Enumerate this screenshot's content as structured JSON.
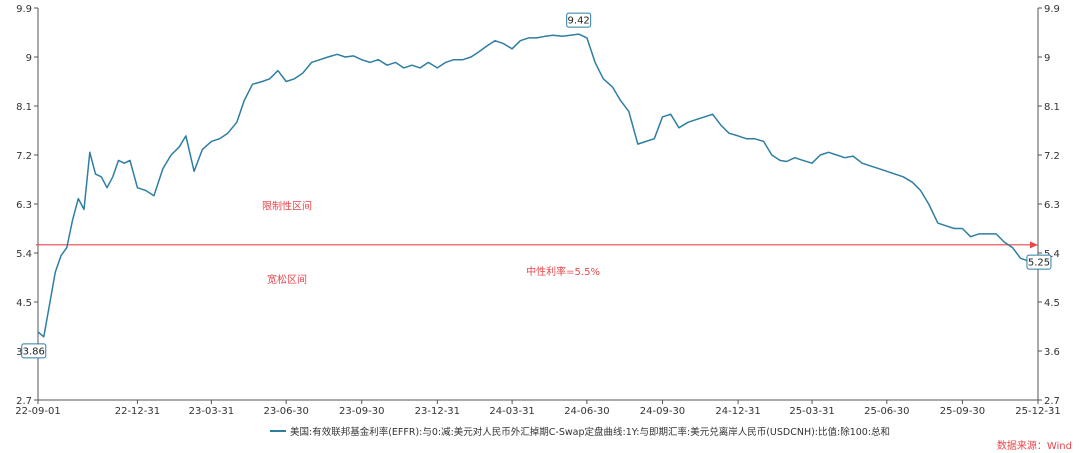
{
  "chart_data": {
    "type": "line",
    "ylim": [
      2.7,
      9.9
    ],
    "yticks": [
      "2.7",
      "3.6",
      "4.5",
      "5.4",
      "6.3",
      "7.2",
      "8.1",
      "9",
      "9.9"
    ],
    "xticks": [
      "22-09-01",
      "22-12-31",
      "23-03-31",
      "23-06-30",
      "23-09-30",
      "23-12-31",
      "24-03-31",
      "24-06-30",
      "24-09-30",
      "24-12-31",
      "25-03-31",
      "25-06-30",
      "25-09-30",
      "25-12-31"
    ],
    "grid": false,
    "legend_position": "bottom",
    "series": [
      {
        "name": "美国:有效联邦基金利率(EFFR):与0:减:美元对人民币外汇掉期C-Swap定盘曲线:1Y:与即期汇率:美元兑离岸人民币(USDCNH):比值:除100:总和",
        "color": "#2e7ea3",
        "points": [
          [
            "22-09-01",
            3.95
          ],
          [
            "22-09-08",
            3.86
          ],
          [
            "22-09-15",
            4.45
          ],
          [
            "22-09-22",
            5.05
          ],
          [
            "22-09-29",
            5.35
          ],
          [
            "22-10-06",
            5.5
          ],
          [
            "22-10-13",
            6.0
          ],
          [
            "22-10-20",
            6.4
          ],
          [
            "22-10-27",
            6.2
          ],
          [
            "22-11-03",
            7.25
          ],
          [
            "22-11-10",
            6.85
          ],
          [
            "22-11-17",
            6.8
          ],
          [
            "22-11-24",
            6.6
          ],
          [
            "22-12-01",
            6.8
          ],
          [
            "22-12-08",
            7.1
          ],
          [
            "22-12-15",
            7.05
          ],
          [
            "22-12-22",
            7.1
          ],
          [
            "22-12-31",
            6.6
          ],
          [
            "23-01-10",
            6.55
          ],
          [
            "23-01-20",
            6.45
          ],
          [
            "23-01-31",
            6.95
          ],
          [
            "23-02-10",
            7.2
          ],
          [
            "23-02-20",
            7.35
          ],
          [
            "23-02-28",
            7.55
          ],
          [
            "23-03-10",
            6.9
          ],
          [
            "23-03-20",
            7.3
          ],
          [
            "23-03-31",
            7.45
          ],
          [
            "23-04-10",
            7.5
          ],
          [
            "23-04-20",
            7.6
          ],
          [
            "23-05-01",
            7.8
          ],
          [
            "23-05-10",
            8.2
          ],
          [
            "23-05-20",
            8.5
          ],
          [
            "23-06-01",
            8.55
          ],
          [
            "23-06-10",
            8.6
          ],
          [
            "23-06-20",
            8.75
          ],
          [
            "23-06-30",
            8.55
          ],
          [
            "23-07-10",
            8.6
          ],
          [
            "23-07-20",
            8.7
          ],
          [
            "23-07-31",
            8.9
          ],
          [
            "23-08-10",
            8.95
          ],
          [
            "23-08-20",
            9.0
          ],
          [
            "23-08-31",
            9.05
          ],
          [
            "23-09-10",
            9.0
          ],
          [
            "23-09-20",
            9.02
          ],
          [
            "23-09-30",
            8.95
          ],
          [
            "23-10-10",
            8.9
          ],
          [
            "23-10-20",
            8.95
          ],
          [
            "23-10-31",
            8.85
          ],
          [
            "23-11-10",
            8.9
          ],
          [
            "23-11-20",
            8.8
          ],
          [
            "23-11-30",
            8.85
          ],
          [
            "23-12-10",
            8.8
          ],
          [
            "23-12-20",
            8.9
          ],
          [
            "23-12-31",
            8.8
          ],
          [
            "24-01-10",
            8.9
          ],
          [
            "24-01-20",
            8.95
          ],
          [
            "24-01-31",
            8.95
          ],
          [
            "24-02-10",
            9.0
          ],
          [
            "24-02-20",
            9.1
          ],
          [
            "24-02-29",
            9.2
          ],
          [
            "24-03-10",
            9.3
          ],
          [
            "24-03-20",
            9.25
          ],
          [
            "24-03-31",
            9.15
          ],
          [
            "24-04-10",
            9.3
          ],
          [
            "24-04-20",
            9.35
          ],
          [
            "24-04-30",
            9.35
          ],
          [
            "24-05-10",
            9.38
          ],
          [
            "24-05-20",
            9.4
          ],
          [
            "24-05-31",
            9.38
          ],
          [
            "24-06-10",
            9.4
          ],
          [
            "24-06-20",
            9.42
          ],
          [
            "24-06-30",
            9.35
          ],
          [
            "24-07-10",
            8.9
          ],
          [
            "24-07-20",
            8.6
          ],
          [
            "24-07-31",
            8.45
          ],
          [
            "24-08-10",
            8.2
          ],
          [
            "24-08-20",
            8.0
          ],
          [
            "24-08-31",
            7.4
          ],
          [
            "24-09-10",
            7.45
          ],
          [
            "24-09-20",
            7.5
          ],
          [
            "24-09-30",
            7.9
          ],
          [
            "24-10-10",
            7.95
          ],
          [
            "24-10-20",
            7.7
          ],
          [
            "24-10-31",
            7.8
          ],
          [
            "24-11-10",
            7.85
          ],
          [
            "24-11-20",
            7.9
          ],
          [
            "24-11-30",
            7.95
          ],
          [
            "24-12-10",
            7.75
          ],
          [
            "24-12-20",
            7.6
          ],
          [
            "24-12-31",
            7.55
          ],
          [
            "25-01-10",
            7.5
          ],
          [
            "25-01-20",
            7.5
          ],
          [
            "25-01-31",
            7.45
          ],
          [
            "25-02-10",
            7.2
          ],
          [
            "25-02-20",
            7.1
          ],
          [
            "25-02-28",
            7.08
          ],
          [
            "25-03-10",
            7.15
          ],
          [
            "25-03-20",
            7.1
          ],
          [
            "25-03-31",
            7.05
          ],
          [
            "25-04-10",
            7.2
          ],
          [
            "25-04-20",
            7.25
          ],
          [
            "25-04-30",
            7.2
          ],
          [
            "25-05-10",
            7.15
          ],
          [
            "25-05-20",
            7.18
          ],
          [
            "25-05-31",
            7.05
          ],
          [
            "25-06-10",
            7.0
          ],
          [
            "25-06-20",
            6.95
          ],
          [
            "25-06-30",
            6.9
          ],
          [
            "25-07-10",
            6.85
          ],
          [
            "25-07-20",
            6.8
          ],
          [
            "25-07-31",
            6.7
          ],
          [
            "25-08-10",
            6.55
          ],
          [
            "25-08-20",
            6.3
          ],
          [
            "25-08-31",
            5.95
          ],
          [
            "25-09-10",
            5.9
          ],
          [
            "25-09-20",
            5.85
          ],
          [
            "25-09-30",
            5.85
          ],
          [
            "25-10-10",
            5.7
          ],
          [
            "25-10-20",
            5.75
          ],
          [
            "25-10-31",
            5.75
          ],
          [
            "25-11-10",
            5.75
          ],
          [
            "25-11-20",
            5.6
          ],
          [
            "25-11-30",
            5.5
          ],
          [
            "25-12-10",
            5.3
          ],
          [
            "25-12-20",
            5.25
          ],
          [
            "25-12-31",
            5.3
          ]
        ]
      }
    ],
    "callouts": [
      {
        "label": "3.86",
        "x": "22-09-08",
        "y": 3.86
      },
      {
        "label": "9.42",
        "x": "24-06-20",
        "y": 9.42
      },
      {
        "label": "5.25",
        "x": "25-12-20",
        "y": 5.25
      }
    ],
    "reference_line": {
      "y": 5.55,
      "color": "#e8474c"
    },
    "annotations": [
      {
        "text": "限制性区间",
        "x": "23-07-01",
        "y": 6.2
      },
      {
        "text": "宽松区间",
        "x": "23-07-01",
        "y": 4.85
      },
      {
        "text": "中性利率=5.5%",
        "x": "24-06-01",
        "y": 5.0
      }
    ]
  },
  "source": "数据来源：Wind"
}
